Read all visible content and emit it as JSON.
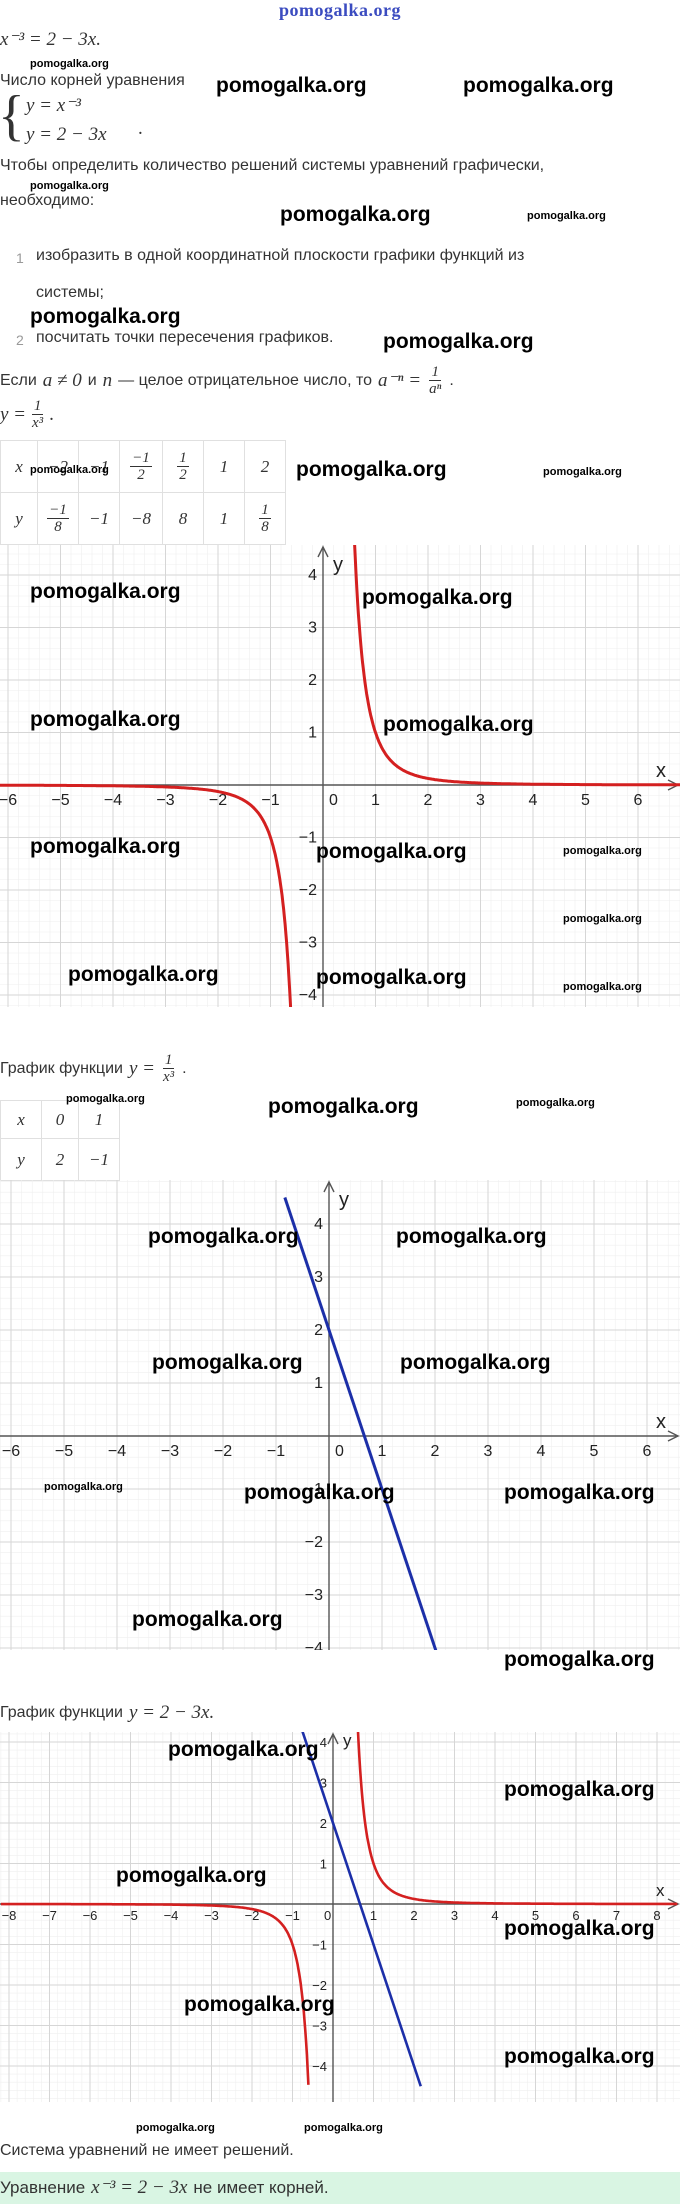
{
  "header": {
    "watermark": "pomogalka.org"
  },
  "equation": "x⁻³ = 2 − 3x.",
  "intro_text": "Число корней уравнения",
  "system": {
    "line1": "y = x⁻³",
    "line2": "y = 2 − 3x"
  },
  "method_text_1": "Чтобы определить количество решений системы уравнений графически,",
  "method_text_2": "необходимо:",
  "steps": [
    {
      "number": "1",
      "line1": "изобразить в одной координатной плоскости графики функций из",
      "line2": "системы;"
    },
    {
      "number": "2",
      "line1": "посчитать точки пересечения графиков."
    }
  ],
  "rule_text": {
    "prefix": "Если",
    "cond": "a ≠ 0",
    "and": "и",
    "n": "n",
    "rest": "— целое отрицательное число, то",
    "formula_left": "a⁻ⁿ =",
    "frac_num": "1",
    "frac_den": "aⁿ"
  },
  "function1": {
    "left": "y =",
    "num": "1",
    "den": "x³"
  },
  "table1": {
    "x_label": "x",
    "y_label": "y",
    "x": [
      "−2",
      "−1",
      "−1/2",
      "1/2",
      "1",
      "2"
    ],
    "y": [
      "−1/8",
      "−1",
      "−8",
      "8",
      "1",
      "1/8"
    ]
  },
  "graph1_caption": {
    "prefix": "График функции",
    "left": "y =",
    "num": "1",
    "den": "x³"
  },
  "table2": {
    "x_label": "x",
    "y_label": "y",
    "x": [
      "0",
      "1"
    ],
    "y": [
      "2",
      "−1"
    ]
  },
  "graph2_caption": {
    "prefix": "График функции",
    "formula": "y = 2 − 3x."
  },
  "conclusion_1": "Система уравнений не имеет решений.",
  "conclusion_2": {
    "prefix": "Уравнение",
    "formula": "x⁻³ = 2 − 3x",
    "suffix": "не имеет корней."
  },
  "colors": {
    "hyperbola": "#d42020",
    "line": "#1c2fa8",
    "result_bg": "#d9f5e3",
    "grid": "#e3e3e3",
    "axis": "#555555"
  },
  "chart_data": [
    {
      "type": "line",
      "title": "",
      "xlabel": "x",
      "ylabel": "y",
      "xlim": [
        -6.3,
        6.8
      ],
      "ylim": [
        -4.3,
        4.5
      ],
      "grid": true,
      "x_ticks": [
        "−6",
        "−5",
        "−4",
        "−3",
        "−2",
        "−1",
        "0",
        "1",
        "2",
        "3",
        "4",
        "5",
        "6"
      ],
      "y_ticks": [
        "4",
        "3",
        "2",
        "1",
        "−1",
        "−2",
        "−3",
        "−4"
      ],
      "series": [
        {
          "function": "y = 1/x³",
          "color": "#d42020"
        }
      ]
    },
    {
      "type": "line",
      "title": "",
      "xlabel": "x",
      "ylabel": "y",
      "xlim": [
        -6.3,
        6.8
      ],
      "ylim": [
        -4.3,
        4.5
      ],
      "grid": true,
      "x_ticks": [
        "−6",
        "−5",
        "−4",
        "−3",
        "−2",
        "−1",
        "0",
        "1",
        "2",
        "3",
        "4",
        "5",
        "6"
      ],
      "y_ticks": [
        "4",
        "3",
        "2",
        "1",
        "−1",
        "−2",
        "−3",
        "−4"
      ],
      "series": [
        {
          "function": "y = 2 − 3x",
          "color": "#1c2fa8"
        }
      ]
    },
    {
      "type": "line",
      "title": "",
      "xlabel": "x",
      "ylabel": "y",
      "xlim": [
        -8.2,
        8.5
      ],
      "ylim": [
        -4.5,
        4.3
      ],
      "grid": true,
      "x_ticks": [
        "−8",
        "−7",
        "−6",
        "−5",
        "−4",
        "−3",
        "−2",
        "−1",
        "0",
        "1",
        "2",
        "3",
        "4",
        "5",
        "6",
        "7",
        "8"
      ],
      "y_ticks": [
        "4",
        "3",
        "2",
        "1",
        "−1",
        "−2",
        "−3",
        "−4"
      ],
      "series": [
        {
          "function": "y = 1/x³",
          "color": "#d42020"
        },
        {
          "function": "y = 2 − 3x",
          "color": "#1c2fa8"
        }
      ]
    }
  ]
}
